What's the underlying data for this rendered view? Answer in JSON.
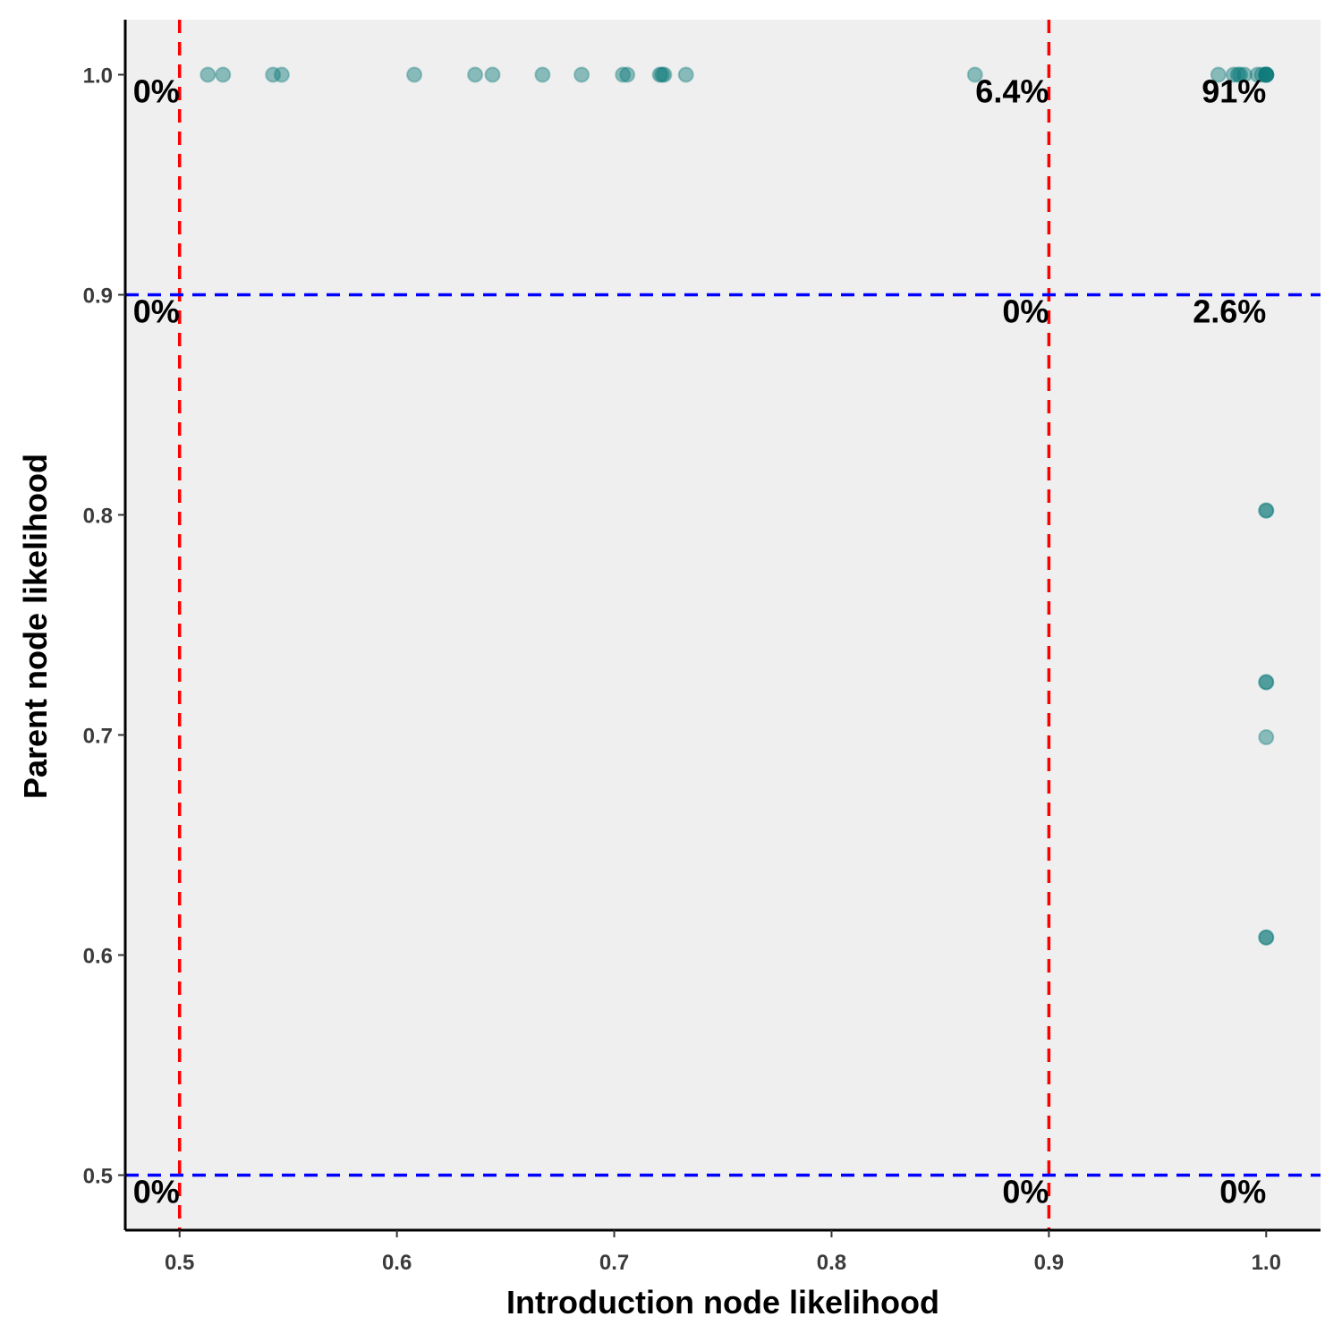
{
  "chart_data": {
    "type": "scatter",
    "xlabel": "Introduction node likelihood",
    "ylabel": "Parent node likelihood",
    "xlim": [
      0.475,
      1.025
    ],
    "ylim": [
      0.475,
      1.025
    ],
    "x_ticks": [
      0.5,
      0.6,
      0.7,
      0.8,
      0.9,
      1.0
    ],
    "y_ticks": [
      0.5,
      0.6,
      0.7,
      0.8,
      0.9,
      1.0
    ],
    "x_tick_labels": [
      "0.5",
      "0.6",
      "0.7",
      "0.8",
      "0.9",
      "1.0"
    ],
    "y_tick_labels": [
      "0.5",
      "0.6",
      "0.7",
      "0.8",
      "0.9",
      "1.0"
    ],
    "grid": false,
    "point_color": "#0e7a7a",
    "point_opacity": 0.45,
    "background_color": "#efefef",
    "threshold_lines": [
      {
        "orientation": "vertical",
        "value": 0.5,
        "color": "#ff0000",
        "style": "dashed"
      },
      {
        "orientation": "vertical",
        "value": 0.9,
        "color": "#ff0000",
        "style": "dashed"
      },
      {
        "orientation": "horizontal",
        "value": 0.9,
        "color": "#0000ff",
        "style": "dashed"
      },
      {
        "orientation": "horizontal",
        "value": 0.5,
        "color": "#0000ff",
        "style": "dashed"
      }
    ],
    "annotations": [
      {
        "text": "0%",
        "x": 0.5,
        "y": 1.0
      },
      {
        "text": "6.4%",
        "x": 0.9,
        "y": 1.0
      },
      {
        "text": "91%",
        "x": 1.0,
        "y": 1.0
      },
      {
        "text": "0%",
        "x": 0.5,
        "y": 0.9
      },
      {
        "text": "0%",
        "x": 0.9,
        "y": 0.9
      },
      {
        "text": "2.6%",
        "x": 1.0,
        "y": 0.9
      },
      {
        "text": "0%",
        "x": 0.5,
        "y": 0.5
      },
      {
        "text": "0%",
        "x": 0.9,
        "y": 0.5
      },
      {
        "text": "0%",
        "x": 1.0,
        "y": 0.5
      }
    ],
    "points": [
      {
        "x": 0.513,
        "y": 1.0
      },
      {
        "x": 0.52,
        "y": 1.0
      },
      {
        "x": 0.543,
        "y": 1.0
      },
      {
        "x": 0.547,
        "y": 1.0
      },
      {
        "x": 0.608,
        "y": 1.0
      },
      {
        "x": 0.636,
        "y": 1.0
      },
      {
        "x": 0.644,
        "y": 1.0
      },
      {
        "x": 0.667,
        "y": 1.0
      },
      {
        "x": 0.685,
        "y": 1.0
      },
      {
        "x": 0.704,
        "y": 1.0
      },
      {
        "x": 0.706,
        "y": 1.0
      },
      {
        "x": 0.721,
        "y": 1.0
      },
      {
        "x": 0.722,
        "y": 1.0
      },
      {
        "x": 0.723,
        "y": 1.0
      },
      {
        "x": 0.733,
        "y": 1.0
      },
      {
        "x": 0.866,
        "y": 1.0
      },
      {
        "x": 0.978,
        "y": 1.0
      },
      {
        "x": 0.985,
        "y": 1.0
      },
      {
        "x": 0.987,
        "y": 1.0
      },
      {
        "x": 0.988,
        "y": 1.0
      },
      {
        "x": 0.99,
        "y": 1.0
      },
      {
        "x": 0.996,
        "y": 1.0
      },
      {
        "x": 0.998,
        "y": 1.0
      },
      {
        "x": 1.0,
        "y": 1.0
      },
      {
        "x": 1.0,
        "y": 1.0
      },
      {
        "x": 1.0,
        "y": 1.0
      },
      {
        "x": 1.0,
        "y": 1.0
      },
      {
        "x": 1.0,
        "y": 1.0
      },
      {
        "x": 1.0,
        "y": 0.802
      },
      {
        "x": 1.0,
        "y": 0.802
      },
      {
        "x": 1.0,
        "y": 0.724
      },
      {
        "x": 1.0,
        "y": 0.724
      },
      {
        "x": 1.0,
        "y": 0.699
      },
      {
        "x": 1.0,
        "y": 0.608
      },
      {
        "x": 1.0,
        "y": 0.608
      }
    ]
  }
}
